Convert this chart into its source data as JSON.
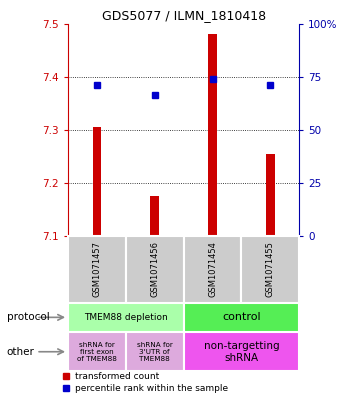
{
  "title": "GDS5077 / ILMN_1810418",
  "samples": [
    "GSM1071457",
    "GSM1071456",
    "GSM1071454",
    "GSM1071455"
  ],
  "red_values": [
    7.305,
    7.175,
    7.48,
    7.255
  ],
  "blue_values": [
    7.385,
    7.365,
    7.395,
    7.385
  ],
  "ylim": [
    7.1,
    7.5
  ],
  "yticks_left": [
    7.1,
    7.2,
    7.3,
    7.4,
    7.5
  ],
  "ytick_labels_left": [
    "7.1",
    "7.2",
    "7.3",
    "7.4",
    "7.5"
  ],
  "yticks_right": [
    0,
    25,
    50,
    75,
    100
  ],
  "ytick_labels_right": [
    "0",
    "25",
    "50",
    "75",
    "100%"
  ],
  "left_color": "#cc0000",
  "right_color": "#0000aa",
  "blue_dot_color": "#0000cc",
  "red_bar_color": "#cc0000",
  "bar_bottom": 7.1,
  "protocol_texts": [
    "TMEM88 depletion",
    "control"
  ],
  "other_texts": [
    "shRNA for\nfirst exon\nof TMEM88",
    "shRNA for\n3'UTR of\nTMEM88",
    "non-targetting\nshRNA"
  ],
  "sample_box_color": "#cccccc",
  "label_protocol": "protocol",
  "label_other": "other",
  "legend_red_text": "transformed count",
  "legend_blue_text": "percentile rank within the sample",
  "fig_bg": "#ffffff",
  "protocol_color_depletion": "#aaffaa",
  "protocol_color_control": "#55ee55",
  "other_color_shrna12": "#ddaadd",
  "other_color_shrna3": "#ee55ee"
}
